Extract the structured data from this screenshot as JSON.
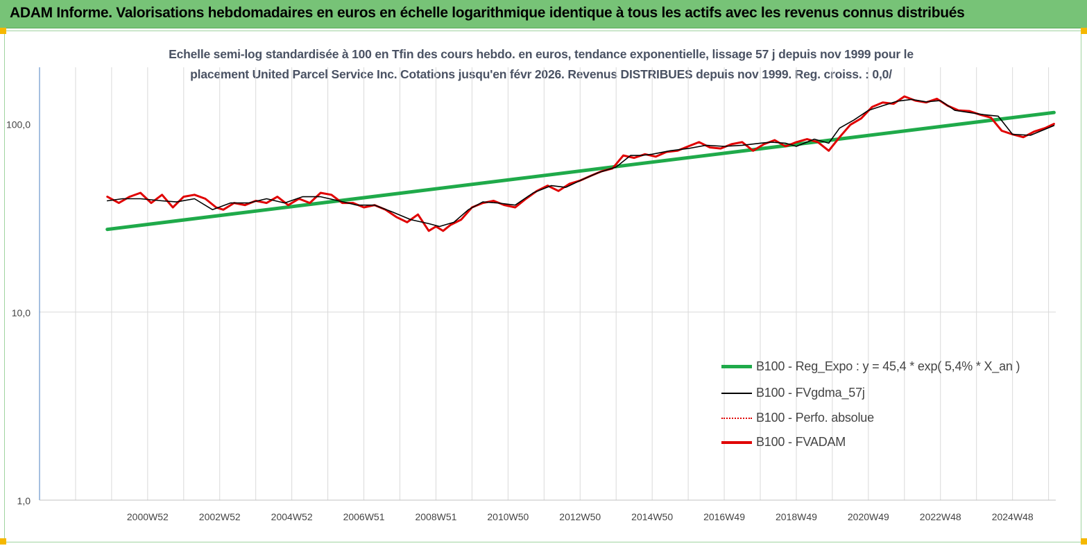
{
  "banner": {
    "title": "ADAM Informe. Valorisations hebdomadaires en euros en échelle logarithmique identique à tous les actifs avec les revenus connus distribués"
  },
  "colors": {
    "banner_bg": "#77c377",
    "trend": "#1faa4a",
    "smooth": "#000000",
    "perf": "#e00000",
    "fvadam": "#e00000",
    "corner": "#f5b800"
  },
  "chart_data": {
    "type": "line",
    "title_line1": "Echelle semi-log standardisée à 100 en Tfin des cours hebdo. en euros, tendance exponentielle, lissage 57 j depuis nov 1999 pour le",
    "title_line2": "placement United Parcel Service Inc. Cotations jusqu'en févr 2026. Revenus DISTRIBUES depuis nov 1999. Reg. croiss. : 0,0/",
    "y_scale": "log",
    "ylim": [
      1,
      200
    ],
    "y_ticks": [
      {
        "value": 1,
        "label": "1,0"
      },
      {
        "value": 10,
        "label": "10,0"
      },
      {
        "value": 100,
        "label": "100,0"
      }
    ],
    "xlim": [
      1998,
      2026.2
    ],
    "x_ticks": [
      {
        "value": 2001.0,
        "label": "2000W52"
      },
      {
        "value": 2003.0,
        "label": "2002W52"
      },
      {
        "value": 2005.0,
        "label": "2004W52"
      },
      {
        "value": 2007.0,
        "label": "2006W51"
      },
      {
        "value": 2009.0,
        "label": "2008W51"
      },
      {
        "value": 2011.0,
        "label": "2010W50"
      },
      {
        "value": 2013.0,
        "label": "2012W50"
      },
      {
        "value": 2015.0,
        "label": "2014W50"
      },
      {
        "value": 2017.0,
        "label": "2016W49"
      },
      {
        "value": 2019.0,
        "label": "2018W49"
      },
      {
        "value": 2021.0,
        "label": "2020W49"
      },
      {
        "value": 2023.0,
        "label": "2022W48"
      },
      {
        "value": 2025.0,
        "label": "2024W48"
      }
    ],
    "x_grid": [
      1998,
      1999,
      2000,
      2001,
      2002,
      2003,
      2004,
      2005,
      2006,
      2007,
      2008,
      2009,
      2010,
      2011,
      2012,
      2013,
      2014,
      2015,
      2016,
      2017,
      2018,
      2019,
      2020,
      2021,
      2022,
      2023,
      2024,
      2025,
      2026
    ],
    "y_grid": [
      10
    ],
    "legend_position": "lower-right",
    "series": [
      {
        "name": "B100 - Reg_Expo : y = 45,4 * exp( 5,4% *  X_an )",
        "style": "trend",
        "x": [
          1999.88,
          2026.15
        ],
        "y": [
          27.5,
          115
        ]
      },
      {
        "name": "B100 - FVgdma_57j",
        "style": "smooth",
        "x": [
          1999.88,
          2000.3,
          2000.8,
          2001.4,
          2001.8,
          2002.3,
          2002.8,
          2003.3,
          2003.8,
          2004.3,
          2004.8,
          2005.3,
          2005.8,
          2006.3,
          2006.8,
          2007.3,
          2007.8,
          2008.3,
          2008.8,
          2009.1,
          2009.5,
          2009.9,
          2010.3,
          2010.7,
          2011.2,
          2011.7,
          2012.2,
          2012.6,
          2013.0,
          2013.5,
          2014.0,
          2014.4,
          2014.7,
          2015.0,
          2015.5,
          2016.0,
          2016.5,
          2017.0,
          2017.5,
          2018.0,
          2018.3,
          2018.7,
          2019.0,
          2019.5,
          2019.9,
          2020.2,
          2020.6,
          2021.0,
          2021.4,
          2021.8,
          2022.2,
          2022.6,
          2023.0,
          2023.4,
          2023.8,
          2024.2,
          2024.6,
          2025.0,
          2025.5,
          2026.15
        ],
        "y": [
          39,
          40,
          40,
          39,
          38.5,
          40,
          35,
          38,
          38,
          40,
          38,
          41,
          41,
          39,
          37,
          37,
          34,
          31,
          29.5,
          28.5,
          30,
          35,
          38.5,
          38,
          37,
          43,
          47,
          46,
          50,
          55,
          59,
          68,
          68,
          69,
          72,
          74,
          77,
          76,
          77,
          79,
          80,
          79,
          76,
          83,
          79,
          95,
          105,
          118,
          125,
          132,
          135,
          131,
          133,
          118,
          115,
          112,
          110,
          88,
          87,
          98
        ]
      },
      {
        "name": "B100 - Perfo. absolue",
        "style": "perf",
        "x": [],
        "y": []
      },
      {
        "name": "B100 - FVADAM",
        "style": "fvadam",
        "x": [
          1999.88,
          2000.2,
          2000.5,
          2000.8,
          2001.1,
          2001.4,
          2001.7,
          2002.0,
          2002.3,
          2002.6,
          2002.9,
          2003.1,
          2003.4,
          2003.7,
          2004.0,
          2004.3,
          2004.6,
          2004.9,
          2005.2,
          2005.5,
          2005.8,
          2006.1,
          2006.4,
          2006.7,
          2007.0,
          2007.3,
          2007.6,
          2007.9,
          2008.2,
          2008.5,
          2008.8,
          2009.0,
          2009.2,
          2009.4,
          2009.7,
          2010.0,
          2010.3,
          2010.6,
          2010.9,
          2011.2,
          2011.5,
          2011.8,
          2012.1,
          2012.4,
          2012.7,
          2013.0,
          2013.3,
          2013.6,
          2013.9,
          2014.2,
          2014.5,
          2014.8,
          2015.1,
          2015.4,
          2015.7,
          2016.0,
          2016.3,
          2016.6,
          2016.9,
          2017.2,
          2017.5,
          2017.8,
          2018.1,
          2018.4,
          2018.7,
          2019.0,
          2019.3,
          2019.6,
          2019.9,
          2020.2,
          2020.5,
          2020.8,
          2021.1,
          2021.4,
          2021.7,
          2022.0,
          2022.3,
          2022.6,
          2022.9,
          2023.2,
          2023.5,
          2023.8,
          2024.1,
          2024.4,
          2024.7,
          2025.0,
          2025.3,
          2025.6,
          2025.9,
          2026.15
        ],
        "y": [
          41,
          38,
          41,
          43,
          38,
          42,
          36,
          41,
          42,
          40,
          36,
          35,
          38,
          37,
          39,
          38,
          41,
          37,
          40,
          38,
          43,
          42,
          38,
          38,
          36,
          37,
          35,
          32,
          30,
          33,
          27,
          28.5,
          27,
          29,
          31,
          36,
          38,
          39,
          37,
          36,
          40,
          44,
          47,
          44,
          48,
          50,
          53,
          56,
          58,
          68,
          66,
          69,
          67,
          71,
          72,
          76,
          80,
          75,
          74,
          78,
          80,
          72,
          78,
          82,
          76,
          80,
          83,
          80,
          72,
          85,
          99,
          107,
          123,
          130,
          128,
          140,
          133,
          130,
          136,
          125,
          118,
          117,
          112,
          108,
          92,
          88,
          85,
          91,
          95,
          100
        ]
      }
    ]
  }
}
